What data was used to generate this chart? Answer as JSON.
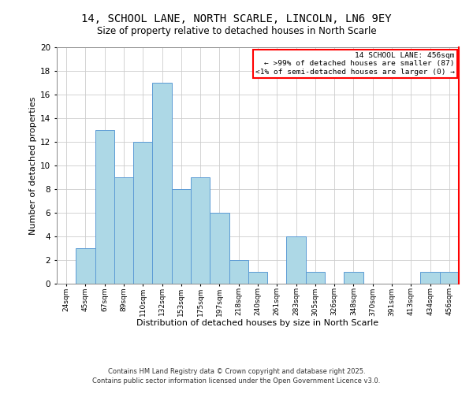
{
  "title_line1": "14, SCHOOL LANE, NORTH SCARLE, LINCOLN, LN6 9EY",
  "title_line2": "Size of property relative to detached houses in North Scarle",
  "xlabel": "Distribution of detached houses by size in North Scarle",
  "ylabel": "Number of detached properties",
  "bin_labels": [
    "24sqm",
    "45sqm",
    "67sqm",
    "89sqm",
    "110sqm",
    "132sqm",
    "153sqm",
    "175sqm",
    "197sqm",
    "218sqm",
    "240sqm",
    "261sqm",
    "283sqm",
    "305sqm",
    "326sqm",
    "348sqm",
    "370sqm",
    "391sqm",
    "413sqm",
    "434sqm",
    "456sqm"
  ],
  "bar_heights": [
    0,
    3,
    13,
    9,
    12,
    17,
    8,
    9,
    6,
    2,
    1,
    0,
    4,
    1,
    0,
    1,
    0,
    0,
    0,
    1,
    1
  ],
  "bar_color": "#add8e6",
  "bar_edge_color": "#5b9bd5",
  "highlight_bin_index": 20,
  "legend_title": "14 SCHOOL LANE: 456sqm",
  "legend_line1": "← >99% of detached houses are smaller (87)",
  "legend_line2": "<1% of semi-detached houses are larger (0) →",
  "legend_box_color": "#ff0000",
  "ylim": [
    0,
    20
  ],
  "yticks": [
    0,
    2,
    4,
    6,
    8,
    10,
    12,
    14,
    16,
    18,
    20
  ],
  "footer_line1": "Contains HM Land Registry data © Crown copyright and database right 2025.",
  "footer_line2": "Contains public sector information licensed under the Open Government Licence v3.0.",
  "background_color": "#ffffff",
  "grid_color": "#cccccc"
}
